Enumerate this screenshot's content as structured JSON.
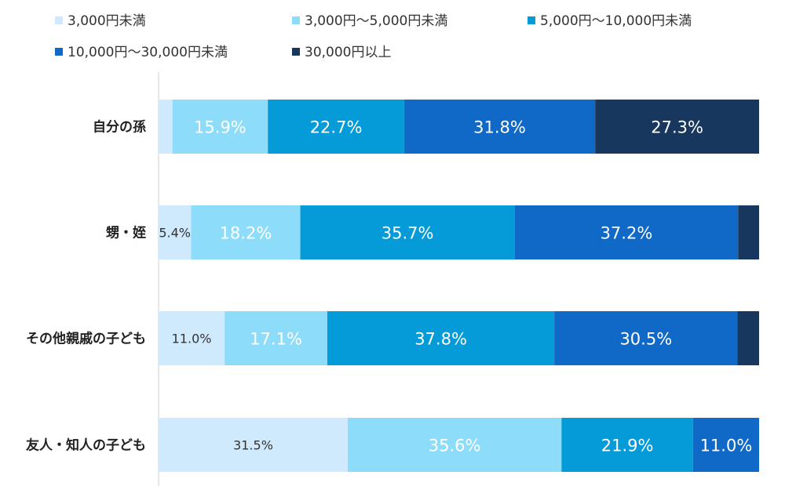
{
  "chart_data": {
    "type": "bar",
    "orientation": "horizontal",
    "stacked": true,
    "percent_stacked": true,
    "legend_position": "top",
    "grid": false,
    "xlim": [
      0,
      100
    ],
    "categories": [
      "自分の孫",
      "甥・姪",
      "その他親戚の子ども",
      "友人・知人の子ども"
    ],
    "series": [
      {
        "name": "3,000円未満",
        "color": "#cfeafd",
        "values": [
          2.3,
          5.4,
          11.0,
          31.5
        ],
        "labels": [
          "",
          "5.4%",
          "11.0%",
          "31.5%"
        ],
        "label_color": "#333333",
        "label_size": "small"
      },
      {
        "name": "3,000円～5,000円未満",
        "color": "#8ddcf9",
        "values": [
          15.9,
          18.2,
          17.1,
          35.6
        ],
        "labels": [
          "15.9%",
          "18.2%",
          "17.1%",
          "35.6%"
        ],
        "label_color": "#ffffff",
        "label_size": "large"
      },
      {
        "name": "5,000円～10,000円未満",
        "color": "#049bd8",
        "values": [
          22.7,
          35.7,
          37.8,
          21.9
        ],
        "labels": [
          "22.7%",
          "35.7%",
          "37.8%",
          "21.9%"
        ],
        "label_color": "#ffffff",
        "label_size": "large"
      },
      {
        "name": "10,000円～30,000円未満",
        "color": "#1069c6",
        "values": [
          31.8,
          37.2,
          30.5,
          11.0
        ],
        "labels": [
          "31.8%",
          "37.2%",
          "30.5%",
          "11.0%"
        ],
        "label_color": "#ffffff",
        "label_size": "large"
      },
      {
        "name": "30,000円以上",
        "color": "#17375f",
        "values": [
          27.3,
          3.5,
          3.6,
          0
        ],
        "labels": [
          "27.3%",
          "",
          "",
          ""
        ],
        "label_color": "#ffffff",
        "label_size": "large"
      }
    ]
  }
}
